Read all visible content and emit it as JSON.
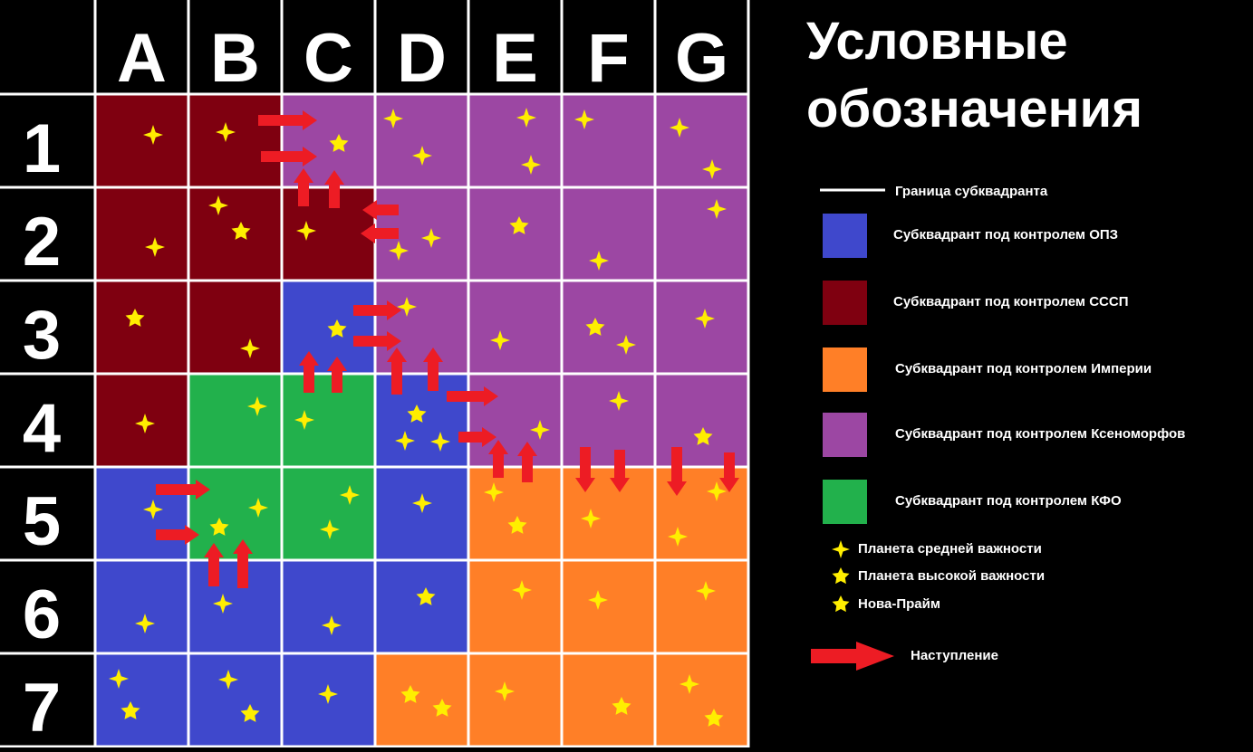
{
  "columns": [
    "A",
    "B",
    "C",
    "D",
    "E",
    "F",
    "G"
  ],
  "rows": [
    "1",
    "2",
    "3",
    "4",
    "5",
    "6",
    "7"
  ],
  "grid": [
    [
      "#7f0010",
      "#7f0010",
      "#9c47a3",
      "#9c47a3",
      "#9c47a3",
      "#9c47a3",
      "#9c47a3"
    ],
    [
      "#7f0010",
      "#7f0010",
      "#7f0010",
      "#9c47a3",
      "#9c47a3",
      "#9c47a3",
      "#9c47a3"
    ],
    [
      "#7f0010",
      "#7f0010",
      "#3f48cc",
      "#9c47a3",
      "#9c47a3",
      "#9c47a3",
      "#9c47a3"
    ],
    [
      "#7f0010",
      "#22b14c",
      "#22b14c",
      "#3f48cc",
      "#9c47a3",
      "#9c47a3",
      "#9c47a3"
    ],
    [
      "#3f48cc",
      "#22b14c",
      "#22b14c",
      "#3f48cc",
      "#ff7f27",
      "#ff7f27",
      "#ff7f27"
    ],
    [
      "#3f48cc",
      "#3f48cc",
      "#3f48cc",
      "#3f48cc",
      "#ff7f27",
      "#ff7f27",
      "#ff7f27"
    ],
    [
      "#3f48cc",
      "#3f48cc",
      "#3f48cc",
      "#ff7f27",
      "#ff7f27",
      "#ff7f27",
      "#ff7f27"
    ]
  ],
  "legend": {
    "title": [
      "Условные",
      "обозначения"
    ],
    "border": "Граница субквадранта",
    "factions": [
      {
        "label": "Субквадрант под контролем ОПЗ",
        "color": "#3f48cc"
      },
      {
        "label": "Субквадрант под контролем СССП",
        "color": "#7f0010"
      },
      {
        "label": "Субквадрант под контролем Империи",
        "color": "#ff7f27"
      },
      {
        "label": "Субквадрант под контролем Ксеноморфов",
        "color": "#9c47a3"
      },
      {
        "label": "Субквадрант под контролем КФО",
        "color": "#22b14c"
      }
    ],
    "planets": [
      "Планета средней важности",
      "Планета высокой важности",
      "Нова-Прайм"
    ],
    "attack": "Наступление"
  }
}
